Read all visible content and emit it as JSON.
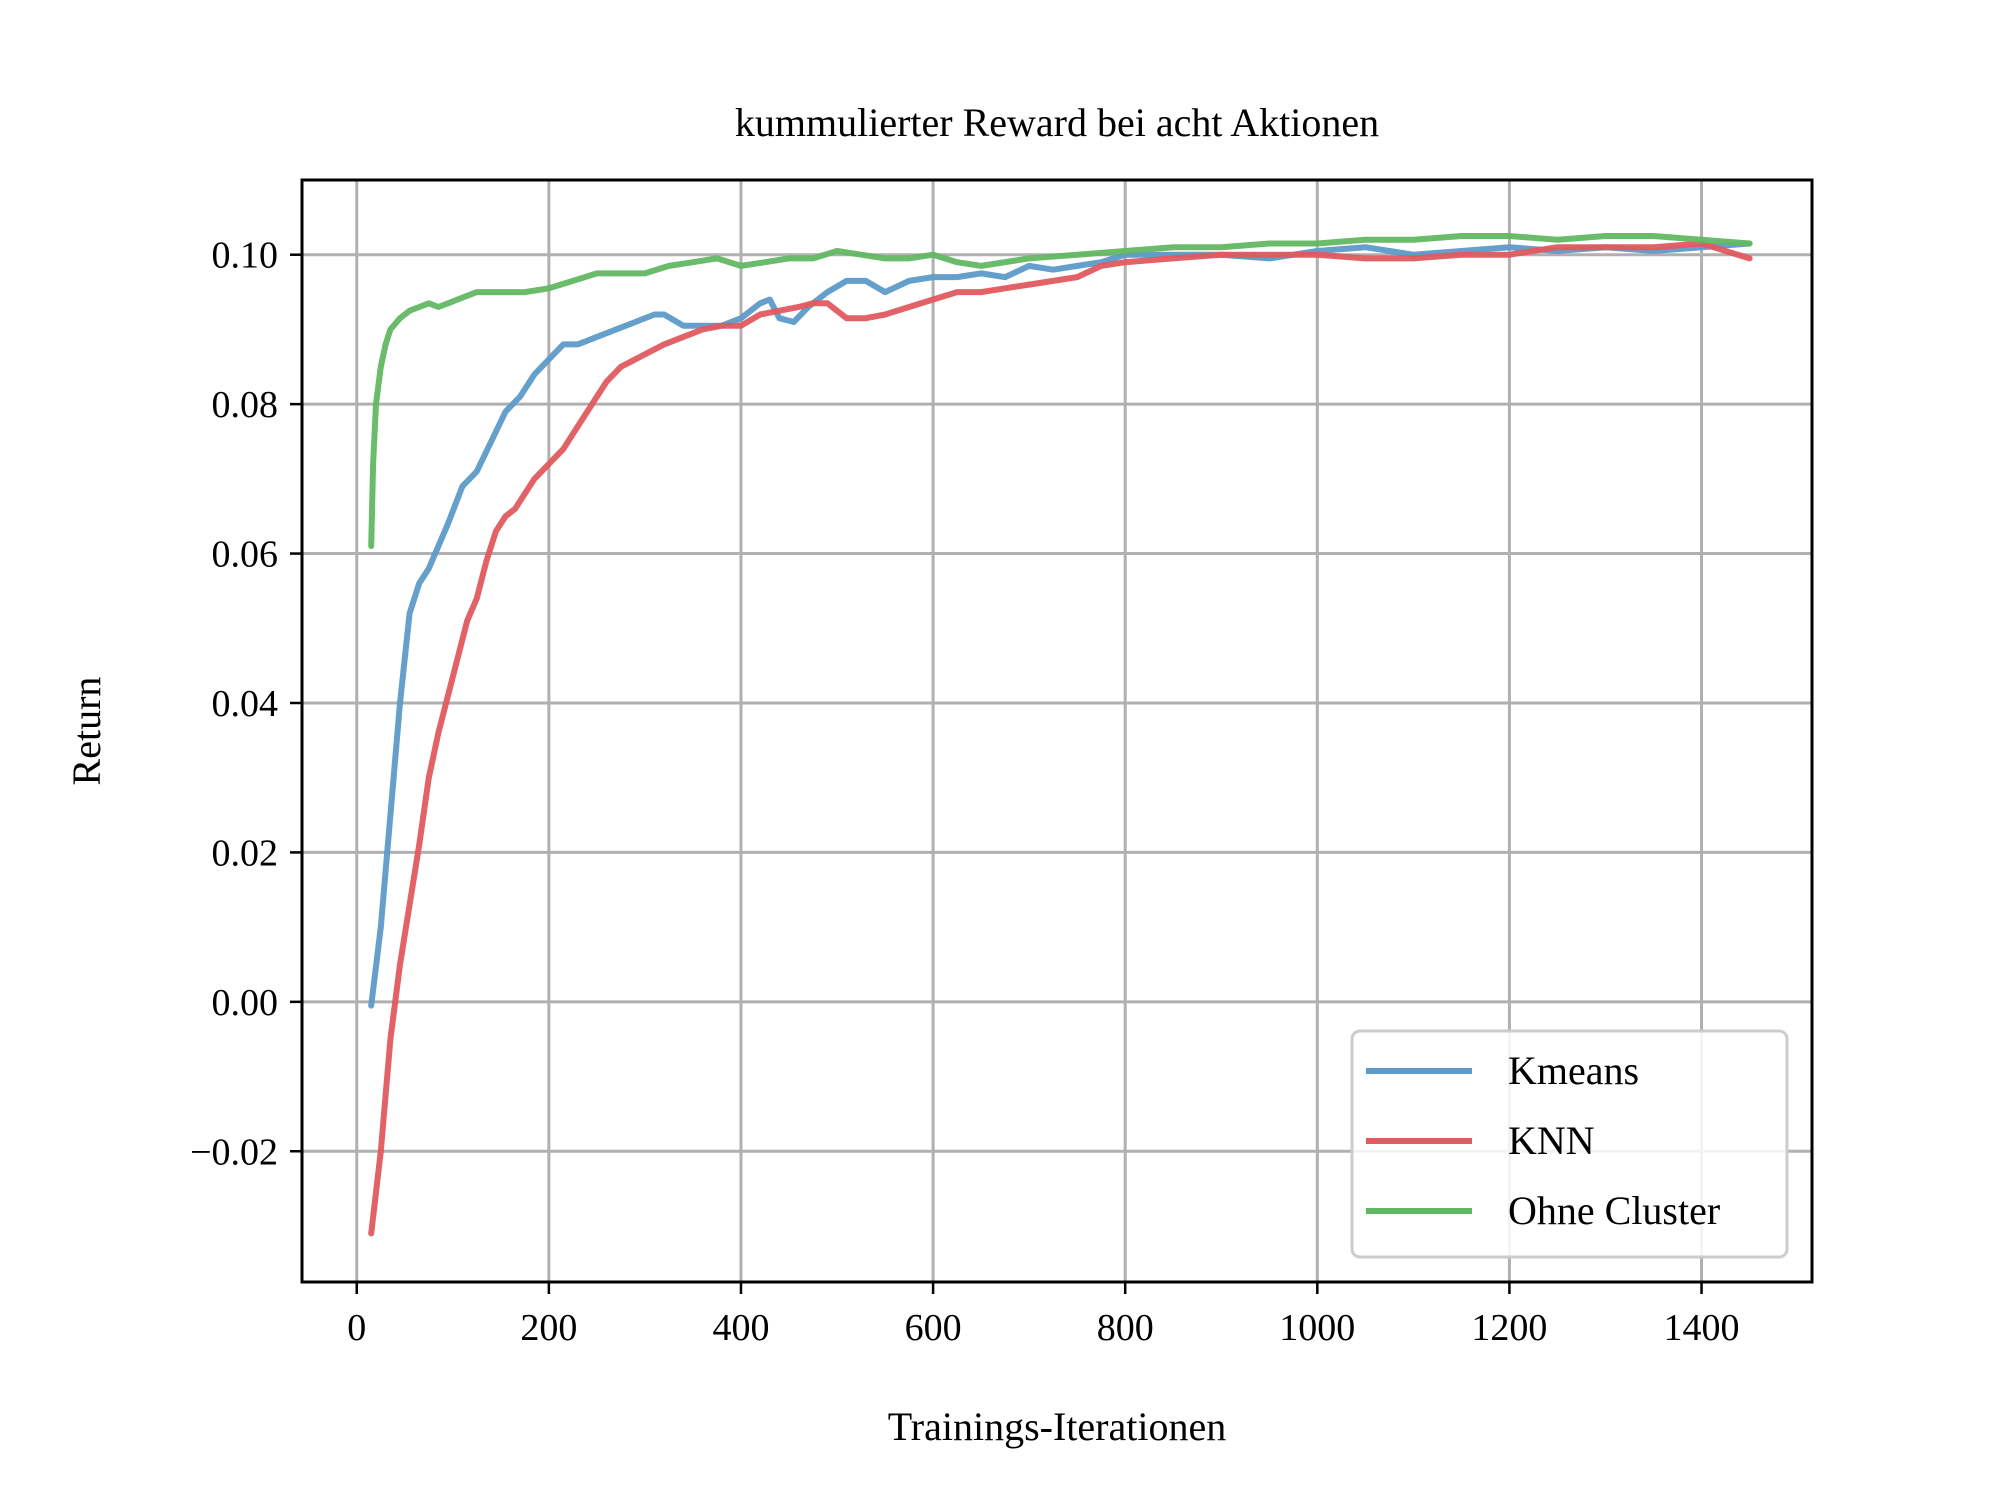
{
  "chart_data": {
    "type": "line",
    "title": "kummulierter Reward bei acht Aktionen",
    "xlabel": "Trainings-Iterationen",
    "ylabel": "Return",
    "xlim": [
      -57,
      1515
    ],
    "ylim": [
      -0.0375,
      0.11
    ],
    "xticks": [
      0,
      200,
      400,
      600,
      800,
      1000,
      1200,
      1400
    ],
    "xtick_labels": [
      "0",
      "200",
      "400",
      "600",
      "800",
      "1000",
      "1200",
      "1400"
    ],
    "yticks": [
      -0.02,
      0.0,
      0.02,
      0.04,
      0.06,
      0.08,
      0.1
    ],
    "ytick_labels": [
      "−0.02",
      "0.00",
      "0.02",
      "0.04",
      "0.06",
      "0.08",
      "0.10"
    ],
    "grid": true,
    "legend_position": "lower-right",
    "series": [
      {
        "name": "Kmeans",
        "color": "#5d9ac8",
        "x": [
          15,
          25,
          35,
          45,
          55,
          65,
          75,
          85,
          95,
          110,
          125,
          140,
          155,
          170,
          185,
          200,
          215,
          230,
          250,
          270,
          290,
          310,
          320,
          340,
          360,
          380,
          400,
          420,
          430,
          440,
          455,
          470,
          490,
          510,
          530,
          550,
          575,
          600,
          625,
          650,
          675,
          700,
          725,
          750,
          775,
          800,
          850,
          900,
          950,
          1000,
          1050,
          1100,
          1150,
          1200,
          1250,
          1300,
          1350,
          1400,
          1450
        ],
        "y": [
          -0.0005,
          0.01,
          0.025,
          0.04,
          0.052,
          0.056,
          0.058,
          0.061,
          0.064,
          0.069,
          0.071,
          0.075,
          0.079,
          0.081,
          0.084,
          0.086,
          0.088,
          0.088,
          0.089,
          0.09,
          0.091,
          0.092,
          0.092,
          0.0905,
          0.0905,
          0.0905,
          0.0915,
          0.0935,
          0.094,
          0.0915,
          0.091,
          0.093,
          0.095,
          0.0965,
          0.0965,
          0.095,
          0.0965,
          0.097,
          0.097,
          0.0975,
          0.097,
          0.0985,
          0.098,
          0.0985,
          0.099,
          0.1,
          0.1,
          0.1,
          0.0995,
          0.1005,
          0.101,
          0.1,
          0.1005,
          0.101,
          0.1005,
          0.101,
          0.1005,
          0.101,
          0.1015
        ]
      },
      {
        "name": "KNN",
        "color": "#e05a5f",
        "x": [
          15,
          25,
          35,
          45,
          55,
          65,
          75,
          85,
          95,
          105,
          115,
          125,
          135,
          145,
          155,
          165,
          175,
          185,
          200,
          215,
          230,
          245,
          260,
          275,
          290,
          305,
          320,
          340,
          360,
          380,
          400,
          420,
          440,
          460,
          475,
          490,
          510,
          530,
          550,
          575,
          600,
          625,
          650,
          675,
          700,
          725,
          750,
          775,
          800,
          850,
          900,
          950,
          1000,
          1050,
          1100,
          1150,
          1200,
          1250,
          1300,
          1350,
          1400,
          1450
        ],
        "y": [
          -0.031,
          -0.02,
          -0.005,
          0.005,
          0.013,
          0.021,
          0.03,
          0.036,
          0.041,
          0.046,
          0.051,
          0.054,
          0.059,
          0.063,
          0.065,
          0.066,
          0.068,
          0.07,
          0.072,
          0.074,
          0.077,
          0.08,
          0.083,
          0.085,
          0.086,
          0.087,
          0.088,
          0.089,
          0.09,
          0.0905,
          0.0905,
          0.092,
          0.0925,
          0.093,
          0.0935,
          0.0935,
          0.0915,
          0.0915,
          0.092,
          0.093,
          0.094,
          0.095,
          0.095,
          0.0955,
          0.096,
          0.0965,
          0.097,
          0.0985,
          0.099,
          0.0995,
          0.1,
          0.1,
          0.1,
          0.0995,
          0.0995,
          0.1,
          0.1,
          0.101,
          0.101,
          0.101,
          0.1015,
          0.0995
        ]
      },
      {
        "name": "Ohne Cluster",
        "color": "#62b862",
        "x": [
          15,
          17,
          20,
          25,
          30,
          35,
          45,
          55,
          65,
          75,
          85,
          95,
          105,
          115,
          125,
          150,
          175,
          200,
          225,
          250,
          275,
          300,
          325,
          350,
          375,
          400,
          425,
          450,
          475,
          500,
          525,
          550,
          575,
          600,
          625,
          650,
          700,
          750,
          800,
          850,
          900,
          950,
          1000,
          1050,
          1100,
          1150,
          1200,
          1250,
          1300,
          1350,
          1400,
          1450
        ],
        "y": [
          0.061,
          0.072,
          0.08,
          0.085,
          0.088,
          0.09,
          0.0915,
          0.0925,
          0.093,
          0.0935,
          0.093,
          0.0935,
          0.094,
          0.0945,
          0.095,
          0.095,
          0.095,
          0.0955,
          0.0965,
          0.0975,
          0.0975,
          0.0975,
          0.0985,
          0.099,
          0.0995,
          0.0985,
          0.099,
          0.0995,
          0.0995,
          0.1005,
          0.1,
          0.0995,
          0.0995,
          0.1,
          0.099,
          0.0985,
          0.0995,
          0.1,
          0.1005,
          0.101,
          0.101,
          0.1015,
          0.1015,
          0.102,
          0.102,
          0.1025,
          0.1025,
          0.102,
          0.1025,
          0.1025,
          0.102,
          0.1015
        ]
      }
    ]
  }
}
